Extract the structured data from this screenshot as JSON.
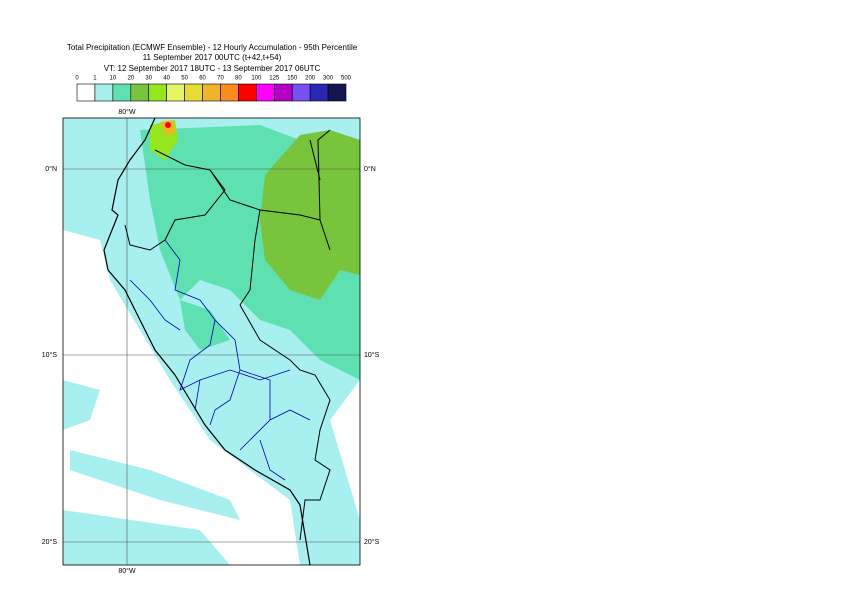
{
  "header": {
    "lines": [
      "Total Precipitation (ECMWF Ensemble) - 12 Hourly Accumulation - 95th Percentile",
      "11 September 2017 00UTC (t+42,t+54)",
      "VT: 12 September 2017 18UTC - 13 September 2017 06UTC"
    ]
  },
  "legend": {
    "labels": [
      "0",
      "1",
      "10",
      "20",
      "30",
      "40",
      "50",
      "60",
      "70",
      "80",
      "100",
      "125",
      "150",
      "200",
      "300",
      "500"
    ],
    "colors": [
      "#ffffff",
      "#a8f0f0",
      "#5fe0b0",
      "#78c43c",
      "#96e61e",
      "#e6f564",
      "#e6dc32",
      "#f0b428",
      "#fa8c1e",
      "#ff0000",
      "#ff00ff",
      "#b400c8",
      "#7850f0",
      "#2828b4",
      "#141450"
    ]
  },
  "map": {
    "lon_label": "80°W",
    "lat_labels": [
      "0°N",
      "10°S",
      "20°S"
    ]
  }
}
